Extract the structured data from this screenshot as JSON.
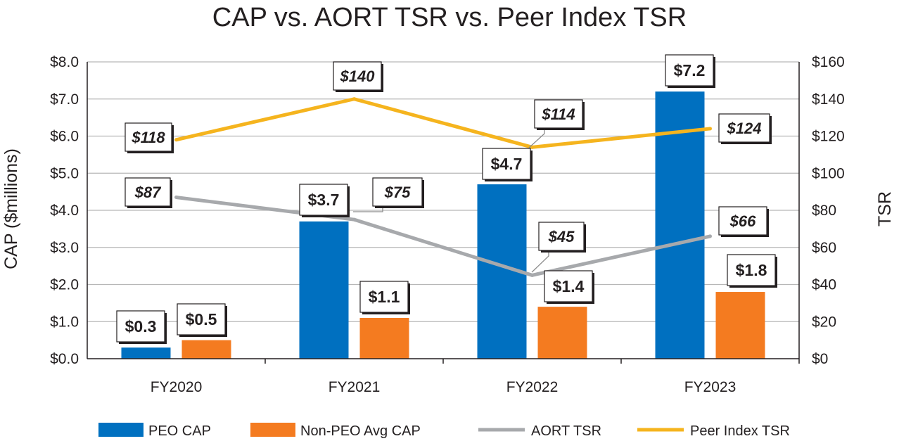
{
  "chart_data": {
    "type": "bar",
    "title": "CAP vs. AORT TSR vs. Peer Index TSR",
    "ylabel": "CAP ($millions)",
    "y2label": "TSR",
    "categories": [
      "FY2020",
      "FY2021",
      "FY2022",
      "FY2023"
    ],
    "ylim": [
      0,
      8
    ],
    "y2lim": [
      0,
      160
    ],
    "yticks": [
      "$0.0",
      "$1.0",
      "$2.0",
      "$3.0",
      "$4.0",
      "$5.0",
      "$6.0",
      "$7.0",
      "$8.0"
    ],
    "y2ticks": [
      "$0",
      "$20",
      "$40",
      "$60",
      "$80",
      "$100",
      "$120",
      "$140",
      "$160"
    ],
    "grid": true,
    "legend_position": "bottom",
    "bar_series": [
      {
        "name": "PEO CAP",
        "color": "#0070c0",
        "values": [
          0.3,
          3.7,
          4.7,
          7.2
        ],
        "labels": [
          "$0.3",
          "$3.7",
          "$4.7",
          "$7.2"
        ]
      },
      {
        "name": "Non-PEO Avg CAP",
        "color": "#f47b20",
        "values": [
          0.5,
          1.1,
          1.4,
          1.8
        ],
        "labels": [
          "$0.5",
          "$1.1",
          "$1.4",
          "$1.8"
        ]
      }
    ],
    "line_series": [
      {
        "name": "AORT TSR",
        "color": "#a7a9ac",
        "axis": "right",
        "values": [
          87,
          75,
          45,
          66
        ],
        "labels": [
          "$87",
          "$75",
          "$45",
          "$66"
        ]
      },
      {
        "name": "Peer Index TSR",
        "color": "#f5b41e",
        "axis": "right",
        "values": [
          118,
          140,
          114,
          124
        ],
        "labels": [
          "$118",
          "$140",
          "$114",
          "$124"
        ]
      }
    ]
  }
}
